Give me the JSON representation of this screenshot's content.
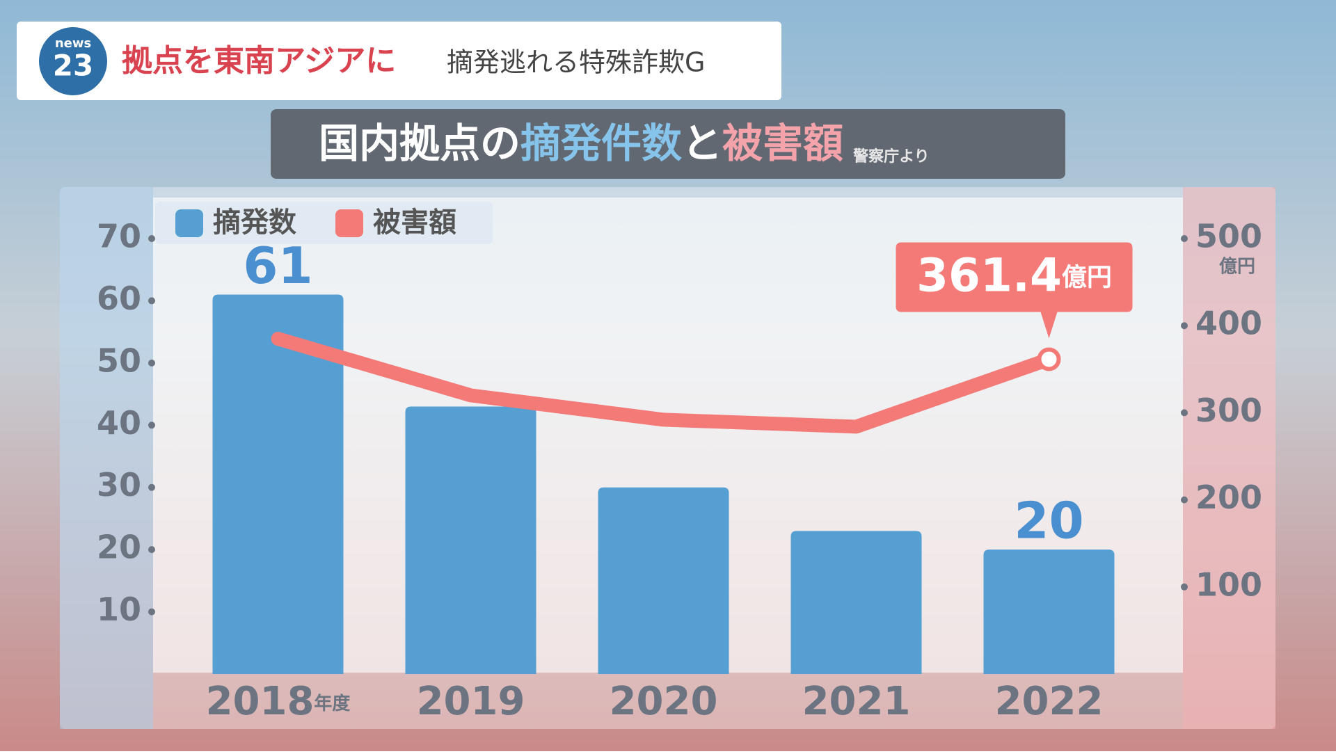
{
  "header": {
    "logo_top": "news",
    "logo_number": "23",
    "headline": "拠点を東南アジアに",
    "subheadline": "摘発逃れる特殊詐欺G"
  },
  "chart_data": {
    "type": "bar",
    "title_parts": [
      "国内拠点の",
      "摘発件数",
      "と",
      "被害額"
    ],
    "source": "警察庁より",
    "categories": [
      "2018",
      "2019",
      "2020",
      "2021",
      "2022"
    ],
    "x_unit": "年度",
    "series": [
      {
        "name": "摘発数",
        "type": "bar",
        "color": "#559fd3",
        "label_color": "#4a8fcf",
        "values": [
          61,
          43,
          30,
          23,
          20
        ],
        "value_labels": [
          "61",
          null,
          null,
          null,
          "20"
        ]
      },
      {
        "name": "被害額",
        "type": "line",
        "axis": "y2",
        "color": "#f47a78",
        "values": [
          385,
          320,
          292,
          284,
          361.4
        ],
        "value_labels": [
          null,
          null,
          null,
          null,
          "361.4"
        ]
      }
    ],
    "ylim": [
      0,
      70
    ],
    "yticks": [
      10,
      20,
      30,
      40,
      50,
      60,
      70
    ],
    "y2lim": [
      0,
      500
    ],
    "y2ticks": [
      100,
      200,
      300,
      400,
      500
    ],
    "y2_unit": "億円",
    "grid": false,
    "legend": "top-left"
  }
}
